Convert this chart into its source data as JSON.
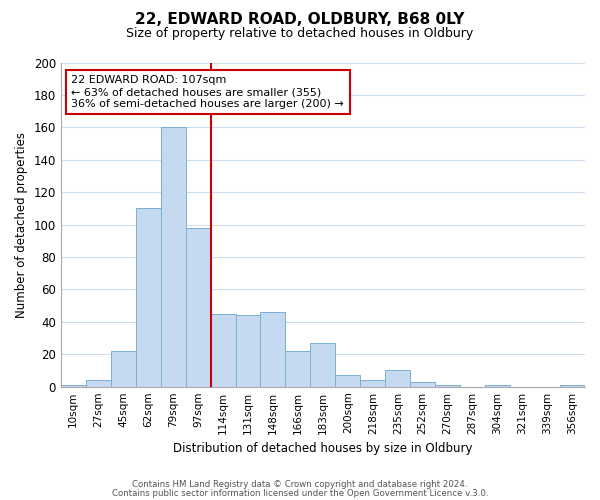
{
  "title": "22, EDWARD ROAD, OLDBURY, B68 0LY",
  "subtitle": "Size of property relative to detached houses in Oldbury",
  "xlabel": "Distribution of detached houses by size in Oldbury",
  "ylabel": "Number of detached properties",
  "bar_labels": [
    "10sqm",
    "27sqm",
    "45sqm",
    "62sqm",
    "79sqm",
    "97sqm",
    "114sqm",
    "131sqm",
    "148sqm",
    "166sqm",
    "183sqm",
    "200sqm",
    "218sqm",
    "235sqm",
    "252sqm",
    "270sqm",
    "287sqm",
    "304sqm",
    "321sqm",
    "339sqm",
    "356sqm"
  ],
  "bar_values": [
    1,
    4,
    22,
    110,
    160,
    98,
    45,
    44,
    46,
    22,
    27,
    7,
    4,
    10,
    3,
    1,
    0,
    1,
    0,
    0,
    1
  ],
  "bar_color": "#c5d9f1",
  "bar_edge_color": "#7bafd4",
  "vline_x": 6.0,
  "vline_color": "#cc0000",
  "annotation_title": "22 EDWARD ROAD: 107sqm",
  "annotation_line1": "← 63% of detached houses are smaller (355)",
  "annotation_line2": "36% of semi-detached houses are larger (200) →",
  "annotation_box_color": "#ffffff",
  "annotation_box_edge_color": "#cc0000",
  "ylim": [
    0,
    200
  ],
  "yticks": [
    0,
    20,
    40,
    60,
    80,
    100,
    120,
    140,
    160,
    180,
    200
  ],
  "footer1": "Contains HM Land Registry data © Crown copyright and database right 2024.",
  "footer2": "Contains public sector information licensed under the Open Government Licence v.3.0.",
  "grid_color": "#ccdded",
  "background_color": "#ffffff"
}
